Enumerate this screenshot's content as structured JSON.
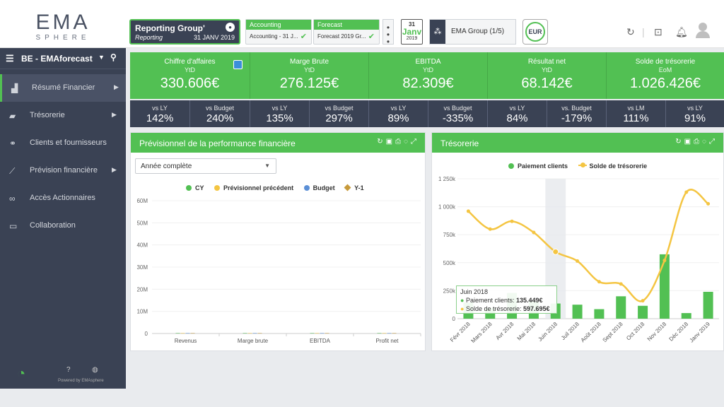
{
  "logo": {
    "ema": "EMA",
    "sphere": "SPHERE"
  },
  "header": {
    "reporting": {
      "title": "Reporting Group'",
      "subtitle": "Reporting",
      "date": "31 JANV 2019"
    },
    "accounting": {
      "title": "Accounting",
      "value": "Accounting - 31 J..."
    },
    "forecast": {
      "title": "Forecast",
      "value": "Forecast 2019 Gr..."
    },
    "calendar": {
      "day": "31",
      "month": "Janv",
      "year": "2019"
    },
    "group": "EMA Group (1/5)",
    "currency": "EUR"
  },
  "sidebar": {
    "entity": "BE - EMAforecast",
    "items": [
      {
        "label": "Résumé Financier",
        "icon": "chart-bar-icon"
      },
      {
        "label": "Trésorerie",
        "icon": "folder-icon"
      },
      {
        "label": "Clients et fournisseurs",
        "icon": "handshake-icon"
      },
      {
        "label": "Prévision financière",
        "icon": "line-chart-icon"
      },
      {
        "label": "Accès Actionnaires",
        "icon": "binoculars-icon"
      },
      {
        "label": "Collaboration",
        "icon": "chat-icon"
      }
    ],
    "powered": "Powered by EMAsphere"
  },
  "kpis": [
    {
      "title": "Chiffre d'affaires",
      "period": "YtD",
      "value": "330.606€"
    },
    {
      "title": "Marge Brute",
      "period": "YtD",
      "value": "276.125€"
    },
    {
      "title": "EBITDA",
      "period": "YtD",
      "value": "82.309€"
    },
    {
      "title": "Résultat net",
      "period": "YtD",
      "value": "68.142€"
    },
    {
      "title": "Solde de trésorerie",
      "period": "EoM",
      "value": "1.026.426€"
    }
  ],
  "comparisons": [
    {
      "label": "vs LY",
      "value": "142%"
    },
    {
      "label": "vs Budget",
      "value": "240%"
    },
    {
      "label": "vs LY",
      "value": "135%"
    },
    {
      "label": "vs Budget",
      "value": "297%"
    },
    {
      "label": "vs LY",
      "value": "89%"
    },
    {
      "label": "vs Budget",
      "value": "-335%"
    },
    {
      "label": "vs LY",
      "value": "84%"
    },
    {
      "label": "vs. Budget",
      "value": "-179%"
    },
    {
      "label": "vs LM",
      "value": "111%"
    },
    {
      "label": "vs LY",
      "value": "91%"
    }
  ],
  "panel_left": {
    "title": "Prévisionnel de la performance financière",
    "dropdown": "Année complète"
  },
  "panel_right": {
    "title": "Trésorerie"
  },
  "tooltip": {
    "month": "Juin 2018",
    "l1": "Paiement clients:",
    "v1": "135.449€",
    "l2": "Solde de trésorerie:",
    "v2": "597.695€"
  },
  "colors": {
    "green": "#52c053",
    "dark": "#3a4254",
    "yellow": "#f4c542",
    "blue": "#5b8fd6",
    "brown": "#c79a3b"
  },
  "chart_data": [
    {
      "type": "bar",
      "categories": [
        "Revenus",
        "Marge brute",
        "EBITDA",
        "Profit net"
      ],
      "series": [
        {
          "name": "CY",
          "values": [
            0,
            0,
            0,
            0
          ]
        },
        {
          "name": "Prévisionnel précédent",
          "values": [
            0,
            0,
            0,
            0
          ]
        },
        {
          "name": "Budget",
          "values": [
            0,
            0,
            0,
            0
          ]
        },
        {
          "name": "Y-1",
          "values": [
            0,
            0,
            0,
            0
          ]
        }
      ],
      "yticks": [
        "0",
        "10M",
        "20M",
        "30M",
        "40M",
        "50M",
        "60M"
      ],
      "ylim": [
        0,
        60000000
      ]
    },
    {
      "type": "bar",
      "categories": [
        "Févr 2018",
        "Mars 2018",
        "Avr 2018",
        "Mai 2018",
        "Juin 2018",
        "Juil 2018",
        "Août 2018",
        "Sept 2018",
        "Oct 2018",
        "Nov 2018",
        "Déc 2018",
        "Janv 2019"
      ],
      "series": [
        {
          "name": "Paiement clients",
          "type": "bar",
          "values": [
            145000,
            95000,
            230000,
            155000,
            135449,
            125000,
            85000,
            200000,
            115000,
            575000,
            50000,
            240000
          ]
        },
        {
          "name": "Solde de trésorerie",
          "type": "line",
          "values": [
            960000,
            800000,
            870000,
            770000,
            597695,
            515000,
            330000,
            310000,
            160000,
            520000,
            1130000,
            1026426
          ]
        }
      ],
      "yticks": [
        "0",
        "250k",
        "500k",
        "750k",
        "1 000k",
        "1 250k"
      ],
      "ylim": [
        0,
        1250000
      ]
    }
  ]
}
